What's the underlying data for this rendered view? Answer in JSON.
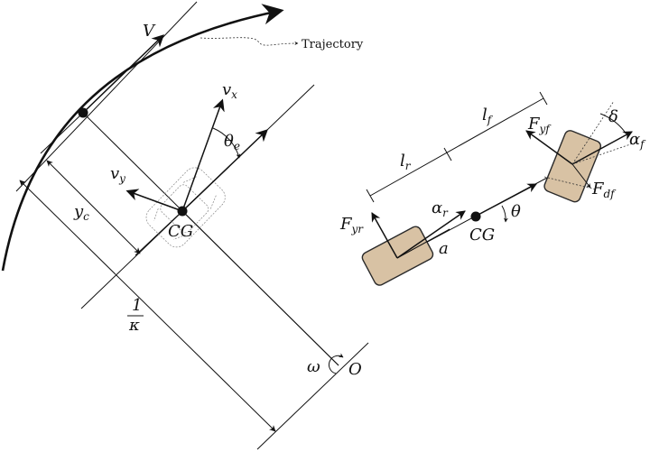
{
  "left_diagram": {
    "labels": {
      "velocity": "V",
      "trajectory": "Trajectory",
      "vx": "v",
      "vx_sub": "x",
      "vy": "v",
      "vy_sub": "y",
      "theta_e": "θ",
      "theta_e_sub": "e",
      "cg": "CG",
      "yc": "y",
      "yc_sub": "c",
      "curvature_num": "1",
      "curvature_den": "κ",
      "omega": "ω",
      "origin": "O"
    }
  },
  "right_diagram": {
    "labels": {
      "lf": "l",
      "lf_sub": "f",
      "lr": "l",
      "lr_sub": "r",
      "fyf": "F",
      "fyf_sub": "yf",
      "fyr": "F",
      "fyr_sub": "yr",
      "fdf": "F",
      "fdf_sub": "df",
      "delta": "δ",
      "alpha_f": "α",
      "alpha_f_sub": "f",
      "alpha_r": "α",
      "alpha_r_sub": "r",
      "a": "a",
      "cg": "CG",
      "theta": "θ"
    },
    "colors": {
      "tire_fill": "#d8c2a4"
    }
  }
}
